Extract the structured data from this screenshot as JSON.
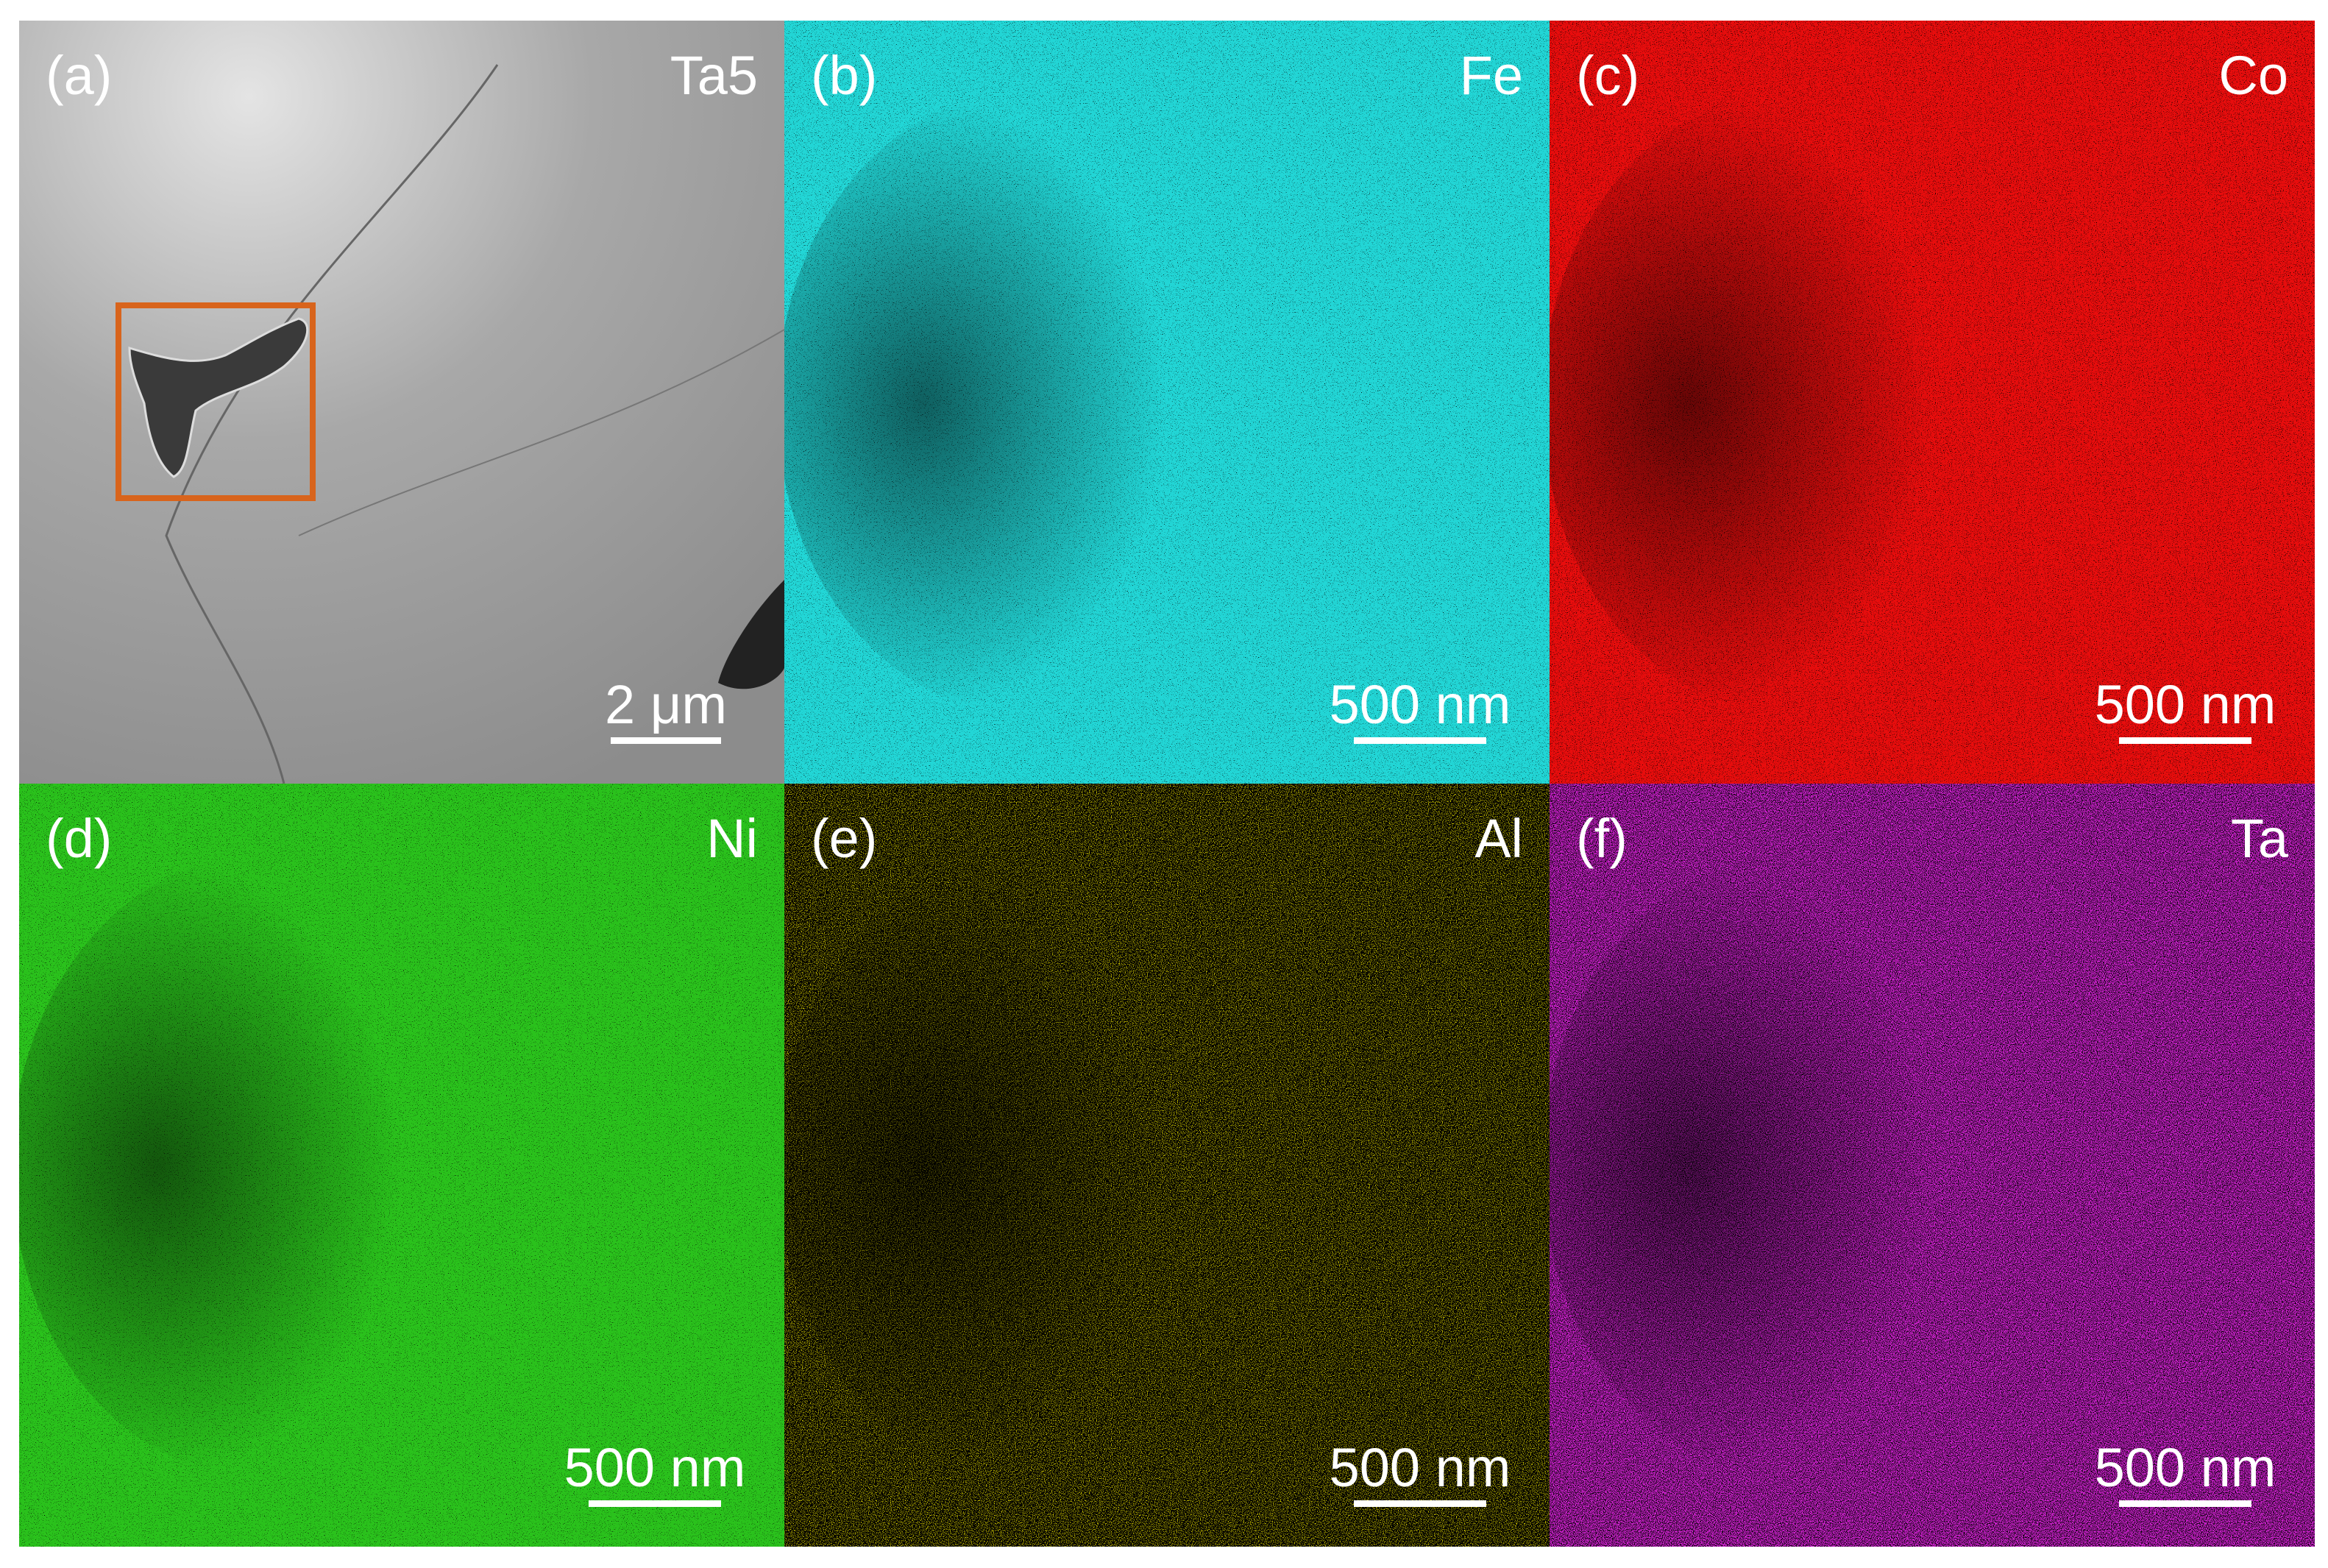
{
  "panels": [
    {
      "label": "(a)",
      "element": "Ta5",
      "scale_bar": "2 μm"
    },
    {
      "label": "(b)",
      "element": "Fe",
      "scale_bar": "500 nm",
      "color": "#22d6d6"
    },
    {
      "label": "(c)",
      "element": "Co",
      "scale_bar": "500 nm",
      "color": "#e81010"
    },
    {
      "label": "(d)",
      "element": "Ni",
      "scale_bar": "500 nm",
      "color": "#2cc21c"
    },
    {
      "label": "(e)",
      "element": "Al",
      "scale_bar": "500 nm",
      "color": "#c8c000"
    },
    {
      "label": "(f)",
      "element": "Ta",
      "scale_bar": "500 nm",
      "color": "#d020d0"
    }
  ]
}
